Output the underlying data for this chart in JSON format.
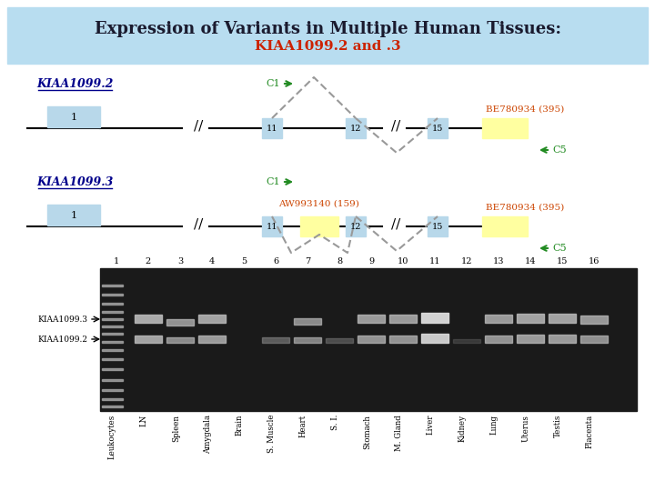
{
  "title_line1": "Expression of Variants in Multiple Human Tissues:",
  "title_line2": "KIAA1099.2 and .3",
  "bg_color": "#cce8f4",
  "header_bg": "#a8d8ee",
  "variant1_label": "KIAA1099.2",
  "variant2_label": "KIAA1099.3",
  "c1_label": "C1",
  "c5_label": "C5",
  "be_label": "BE780934 (395)",
  "aw_label": "AW993140 (159)",
  "lane_numbers": [
    "1",
    "2",
    "3",
    "4",
    "5",
    "6",
    "7",
    "8",
    "9",
    "10",
    "11",
    "12",
    "13",
    "14",
    "15",
    "16"
  ],
  "tissue_labels": [
    "Leukocytes",
    "LN",
    "Spleen",
    "Amygdala",
    "Brain",
    "S. Muscle",
    "Heart",
    "S. I.",
    "Stomach",
    "M. Gland",
    "Liver",
    "Kidney",
    "Lung",
    "Uterus",
    "Testis",
    "Placenta"
  ],
  "kiaa3_label": "KIAA1099.3",
  "kiaa2_label": "KIAA1099.2",
  "exon_color_blue": "#b8d8ea",
  "exon_color_yellow": "#ffffa0",
  "dark_blue": "#00008b",
  "dark_red": "#cc2200",
  "green": "#228b22",
  "orange_red": "#cc4400",
  "gray_intron": "#999999",
  "title_color": "#1a1a2e",
  "gel_dark": "#1a1a1a"
}
